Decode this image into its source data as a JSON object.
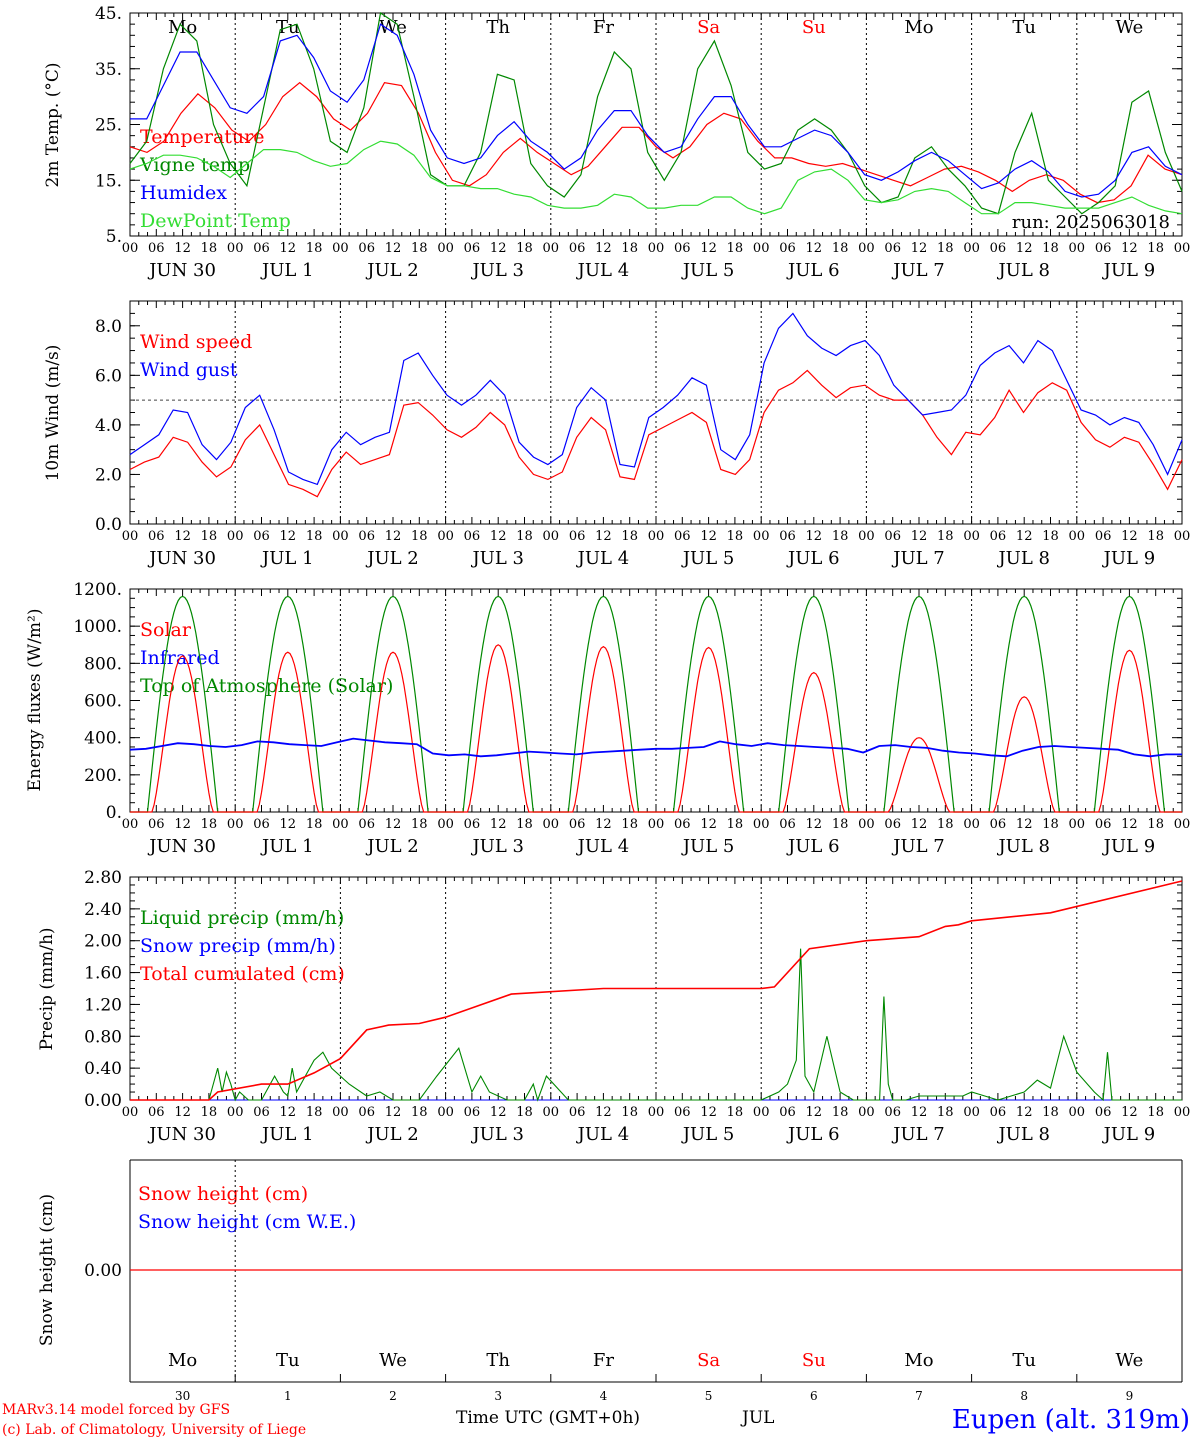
{
  "days": {
    "names": [
      "Mo",
      "Tu",
      "We",
      "Th",
      "Fr",
      "Sa",
      "Su",
      "Mo",
      "Tu",
      "We"
    ],
    "weekend_flags": [
      false,
      false,
      false,
      false,
      false,
      true,
      true,
      false,
      false,
      false
    ],
    "date_labels": [
      "JUN 30",
      "JUL  1",
      "JUL  2",
      "JUL  3",
      "JUL  4",
      "JUL  5",
      "JUL  6",
      "JUL  7",
      "JUL  8",
      "JUL  9"
    ],
    "hour_labels": [
      "00",
      "06",
      "12",
      "18"
    ],
    "bottom_day_numbers": [
      "30",
      "1",
      "2",
      "3",
      "4",
      "5",
      "6",
      "7",
      "8",
      "9"
    ]
  },
  "colors": {
    "red": "#ff0000",
    "green": "#008800",
    "blue": "#0000ff",
    "lightgreen": "#33dd33",
    "weekend": "#ff0000",
    "axis": "#000000"
  },
  "footer": {
    "credit_line1": "MARv3.14 model forced by GFS",
    "credit_line2": "(c) Lab. of Climatology, University of Liege",
    "time_label": "Time UTC (GMT+0h)",
    "month_label": "JUL",
    "station": "Eupen (alt. 319m)"
  },
  "chart_data": [
    {
      "type": "line",
      "ylabel": "2m Temp. (°C)",
      "ylim": [
        5,
        45
      ],
      "yticks": [
        "45.",
        "35.",
        "25.",
        "15.",
        "5."
      ],
      "annotation": "run: 2025063018",
      "legend": [
        "Temperature",
        "Vigne temp",
        "Humidex",
        "DewPoint Temp"
      ],
      "series": [
        {
          "name": "Temperature",
          "color": "red",
          "values": [
            21,
            20,
            22,
            27,
            30.5,
            28,
            24,
            22,
            25,
            30,
            32.5,
            30,
            26,
            24,
            27,
            32.5,
            32,
            27,
            20,
            15,
            14,
            16,
            20,
            22.5,
            20,
            18,
            16,
            17.5,
            21,
            24.5,
            24.5,
            21,
            19,
            21,
            25,
            27,
            26,
            22,
            19,
            19,
            18,
            17.5,
            18,
            17,
            16,
            15,
            14,
            15.5,
            17,
            17.5,
            16.5,
            15,
            13,
            15,
            16,
            15,
            12.5,
            11,
            11.5,
            14,
            19.5,
            17,
            16
          ]
        },
        {
          "name": "Vigne temp",
          "color": "green",
          "values": [
            18,
            22,
            35,
            43,
            40,
            25,
            18,
            14,
            28,
            42,
            43,
            35,
            22,
            20,
            28,
            45,
            43,
            30,
            16,
            14,
            14,
            20,
            34,
            33,
            18,
            14,
            12,
            16,
            30,
            38,
            35,
            20,
            15,
            20,
            35,
            40,
            32,
            20,
            17,
            18,
            24,
            26,
            24,
            20,
            14,
            11,
            12,
            19,
            21,
            17,
            14,
            10,
            9,
            20,
            27,
            15,
            12,
            9,
            11,
            14,
            29,
            31,
            20,
            13
          ]
        },
        {
          "name": "Humidex",
          "color": "blue",
          "values": [
            26,
            26,
            32,
            38,
            38,
            33,
            28,
            27,
            30,
            40,
            41,
            37,
            31,
            29,
            33,
            43,
            41,
            34,
            24,
            19,
            18,
            19,
            23,
            25.5,
            22,
            20,
            17,
            19,
            24,
            27.5,
            27.5,
            23,
            20,
            21,
            26,
            30,
            30,
            25,
            21,
            21,
            22.5,
            24,
            23,
            20,
            16,
            15,
            16.5,
            18.5,
            20,
            18.5,
            16,
            13.5,
            14.5,
            17,
            18.5,
            16.5,
            13,
            12,
            12.5,
            15,
            20,
            21,
            17.5,
            16
          ]
        },
        {
          "name": "DewPoint Temp",
          "color": "lightgreen",
          "values": [
            17,
            18,
            19.5,
            19.5,
            19,
            17.5,
            15.5,
            18,
            20.5,
            20.5,
            20,
            18.5,
            17.5,
            18,
            20.5,
            22,
            21.5,
            19.5,
            15.5,
            14,
            14,
            13.5,
            13.5,
            12.5,
            12,
            10.5,
            10,
            10,
            10.5,
            12.5,
            12,
            10,
            10,
            10.5,
            10.5,
            12,
            12,
            10,
            9,
            10,
            15,
            16.5,
            17,
            15,
            11.5,
            11,
            11.5,
            13,
            13.5,
            13,
            11,
            9,
            9,
            11,
            11,
            10.5,
            10,
            10,
            10,
            11,
            12,
            10.5,
            9.5,
            9
          ]
        }
      ]
    },
    {
      "type": "line",
      "ylabel": "10m Wind (m/s)",
      "ylim": [
        0,
        9
      ],
      "yticks": [
        "8.0",
        "6.0",
        "4.0",
        "2.0",
        "0.0"
      ],
      "reference_line": 5,
      "legend": [
        "Wind speed",
        "Wind gust"
      ],
      "series": [
        {
          "name": "Wind speed",
          "color": "red",
          "values": [
            2.2,
            2.5,
            2.7,
            3.5,
            3.3,
            2.5,
            1.9,
            2.3,
            3.4,
            4.0,
            2.8,
            1.6,
            1.4,
            1.1,
            2.2,
            2.9,
            2.4,
            2.6,
            2.8,
            4.8,
            4.9,
            4.4,
            3.8,
            3.5,
            3.9,
            4.5,
            4.0,
            2.7,
            2.0,
            1.8,
            2.1,
            3.5,
            4.3,
            3.8,
            1.9,
            1.8,
            3.6,
            3.9,
            4.2,
            4.5,
            4.1,
            2.2,
            2.0,
            2.6,
            4.5,
            5.4,
            5.7,
            6.2,
            5.6,
            5.1,
            5.5,
            5.6,
            5.2,
            5.0,
            5.0,
            4.4,
            3.5,
            2.8,
            3.7,
            3.6,
            4.3,
            5.4,
            4.5,
            5.3,
            5.7,
            5.4,
            4.1,
            3.4,
            3.1,
            3.5,
            3.3,
            2.4,
            1.4,
            2.6
          ]
        },
        {
          "name": "Wind gust",
          "color": "blue",
          "values": [
            2.8,
            3.2,
            3.6,
            4.6,
            4.5,
            3.2,
            2.6,
            3.3,
            4.7,
            5.2,
            3.8,
            2.1,
            1.8,
            1.6,
            3.0,
            3.7,
            3.2,
            3.5,
            3.7,
            6.6,
            6.9,
            6.0,
            5.2,
            4.8,
            5.2,
            5.8,
            5.2,
            3.3,
            2.7,
            2.4,
            2.8,
            4.7,
            5.5,
            5.0,
            2.4,
            2.3,
            4.3,
            4.7,
            5.2,
            5.9,
            5.6,
            3.0,
            2.6,
            3.6,
            6.5,
            7.9,
            8.5,
            7.6,
            7.1,
            6.8,
            7.2,
            7.4,
            6.8,
            5.6,
            5.0,
            4.4,
            4.5,
            4.6,
            5.2,
            6.4,
            6.9,
            7.2,
            6.5,
            7.4,
            7.0,
            5.8,
            4.6,
            4.4,
            4.0,
            4.3,
            4.1,
            3.2,
            2.0,
            3.4
          ]
        }
      ]
    },
    {
      "type": "line",
      "ylabel": "Energy fluxes (W/m²)",
      "ylim": [
        0,
        1200
      ],
      "yticks": [
        "1200.",
        "1000.",
        "800.",
        "600.",
        "400.",
        "200.",
        "0."
      ],
      "legend": [
        "Solar",
        "Infrared",
        "Top of Atmosphere (Solar)"
      ],
      "toa_peak": 1160,
      "solar_daily_peaks": [
        840,
        860,
        860,
        900,
        890,
        885,
        750,
        400,
        620,
        870
      ],
      "infrared_values": [
        335,
        340,
        355,
        370,
        365,
        355,
        350,
        360,
        380,
        375,
        365,
        360,
        355,
        375,
        395,
        385,
        375,
        370,
        365,
        315,
        305,
        310,
        300,
        305,
        315,
        325,
        320,
        315,
        310,
        320,
        325,
        330,
        335,
        340,
        340,
        345,
        350,
        380,
        365,
        355,
        370,
        360,
        355,
        350,
        345,
        340,
        320,
        355,
        360,
        350,
        345,
        330,
        320,
        315,
        305,
        300,
        330,
        350,
        355,
        350,
        345,
        340,
        335,
        310,
        300,
        310,
        310
      ]
    },
    {
      "type": "line",
      "ylabel": "Precip (mm/h)",
      "ylim": [
        0,
        2.8
      ],
      "yticks": [
        "2.80",
        "2.40",
        "2.00",
        "1.60",
        "1.20",
        "0.80",
        "0.40",
        "0.00"
      ],
      "legend": [
        "Liquid precip (mm/h)",
        "Snow precip (mm/h)",
        "Total cumulated (cm)"
      ],
      "series": [
        {
          "name": "Total cumulated (cm)",
          "color": "red",
          "x_hours": [
            0,
            36,
            40,
            60,
            72,
            84,
            96,
            108,
            118,
            132,
            144,
            174,
            216,
            240,
            250,
            264,
            288,
            294,
            310,
            336,
            360,
            372,
            378,
            384,
            420,
            480
          ],
          "values": [
            0,
            0,
            0.1,
            0.2,
            0.2,
            0.34,
            0.52,
            0.88,
            0.94,
            0.96,
            1.04,
            1.33,
            1.4,
            1.4,
            1.4,
            1.4,
            1.4,
            1.42,
            1.9,
            2.0,
            2.05,
            2.18,
            2.2,
            2.25,
            2.35,
            2.75
          ]
        },
        {
          "name": "Liquid precip (mm/h)",
          "color": "green",
          "x_hours": [
            0,
            36,
            40,
            42,
            44,
            46,
            48,
            50,
            54,
            60,
            66,
            70,
            72,
            74,
            76,
            80,
            84,
            88,
            92,
            100,
            108,
            114,
            120,
            126,
            132,
            140,
            150,
            156,
            160,
            164,
            172,
            180,
            184,
            186,
            190,
            200,
            240,
            280,
            288,
            296,
            300,
            304,
            306,
            308,
            312,
            318,
            324,
            330,
            336,
            342,
            344,
            346,
            348,
            354,
            360,
            380,
            384,
            390,
            396,
            402,
            408,
            414,
            420,
            426,
            432,
            440,
            444,
            446,
            448,
            456,
            480
          ],
          "values": [
            0,
            0,
            0.4,
            0.1,
            0.35,
            0.2,
            0,
            0.1,
            0,
            0,
            0.3,
            0.1,
            0.05,
            0.4,
            0.1,
            0.3,
            0.5,
            0.6,
            0.4,
            0.2,
            0.05,
            0.1,
            0,
            0,
            0,
            0.3,
            0.65,
            0.1,
            0.3,
            0.1,
            0,
            0,
            0.2,
            0,
            0.3,
            0,
            0,
            0,
            0,
            0.1,
            0.2,
            0.5,
            1.9,
            0.3,
            0.1,
            0.8,
            0.1,
            0,
            0,
            0,
            1.3,
            0.2,
            0,
            0,
            0.05,
            0.05,
            0.1,
            0.05,
            0,
            0.05,
            0.1,
            0.25,
            0.15,
            0.8,
            0.35,
            0.1,
            0,
            0.6,
            0,
            0,
            0
          ]
        },
        {
          "name": "Snow precip (mm/h)",
          "color": "blue",
          "x_hours": [
            0,
            480
          ],
          "values": [
            0,
            0
          ]
        }
      ]
    },
    {
      "type": "line",
      "ylabel": "Snow height (cm)",
      "yticks": [
        "0.00"
      ],
      "legend": [
        "Snow height (cm)",
        "Snow height (cm W.E.)"
      ],
      "series": [
        {
          "name": "Snow height (cm)",
          "color": "red",
          "values": [
            0,
            0
          ]
        },
        {
          "name": "Snow height (cm W.E.)",
          "color": "blue",
          "values": [
            0,
            0
          ]
        }
      ]
    }
  ]
}
